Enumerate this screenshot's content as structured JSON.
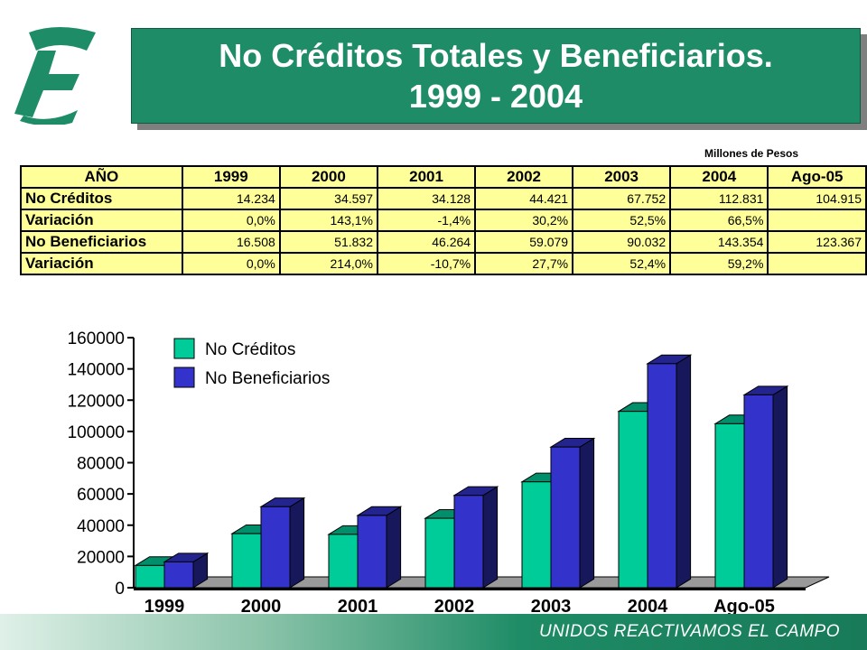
{
  "title": {
    "line1": "No Créditos Totales y Beneficiarios.",
    "line2": "1999 - 2004"
  },
  "unit_note": "Millones de Pesos",
  "table": {
    "headers": [
      "AÑO",
      "1999",
      "2000",
      "2001",
      "2002",
      "2003",
      "2004",
      "Ago-05"
    ],
    "rows": [
      {
        "label": "No Créditos",
        "values": [
          "14.234",
          "34.597",
          "34.128",
          "44.421",
          "67.752",
          "112.831",
          "104.915"
        ]
      },
      {
        "label": "Variación",
        "values": [
          "0,0%",
          "143,1%",
          "-1,4%",
          "30,2%",
          "52,5%",
          "66,5%",
          ""
        ]
      },
      {
        "label": "No Beneficiarios",
        "values": [
          "16.508",
          "51.832",
          "46.264",
          "59.079",
          "90.032",
          "143.354",
          "123.367"
        ]
      },
      {
        "label": "Variación",
        "values": [
          "0,0%",
          "214,0%",
          "-10,7%",
          "27,7%",
          "52,4%",
          "59,2%",
          ""
        ]
      }
    ]
  },
  "chart_data": {
    "type": "bar",
    "categories": [
      "1999",
      "2000",
      "2001",
      "2002",
      "2003",
      "2004",
      "Ago-05"
    ],
    "series": [
      {
        "name": "No Créditos",
        "values": [
          14234,
          34597,
          34128,
          44421,
          67752,
          112831,
          104915
        ],
        "color": "#00cc99"
      },
      {
        "name": "No Beneficiarios",
        "values": [
          16508,
          51832,
          46264,
          59079,
          90032,
          143354,
          123367
        ],
        "color": "#3333cc"
      }
    ],
    "yticks": [
      "0",
      "20000",
      "40000",
      "60000",
      "80000",
      "100000",
      "120000",
      "140000",
      "160000"
    ],
    "ylim": [
      0,
      160000
    ],
    "legend": "top-left",
    "grid": false
  },
  "footer": "UNIDOS REACTIVAMOS EL CAMPO",
  "colors": {
    "title_bg": "#1e8c66",
    "table_bg": "#ffff99",
    "logo": "#1e8c66"
  }
}
